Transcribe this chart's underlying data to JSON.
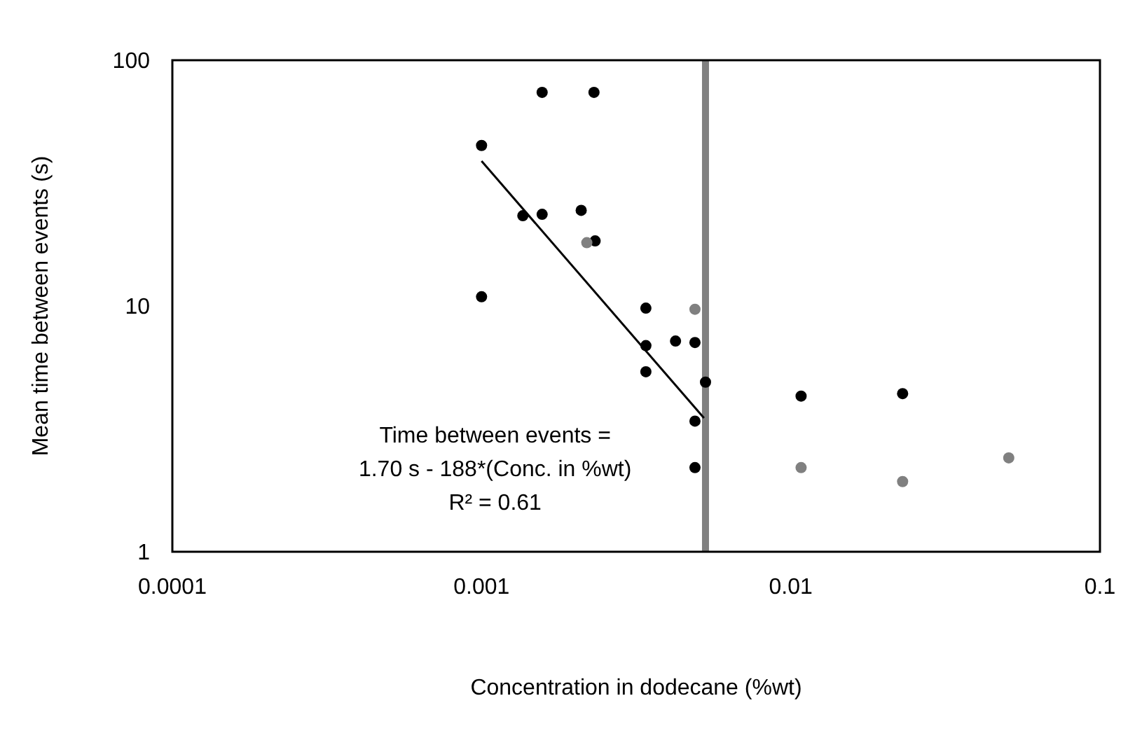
{
  "chart_data": {
    "type": "scatter",
    "xlabel": "Concentration in dodecane (%wt)",
    "ylabel": "Mean time between events (s)",
    "log": "xy",
    "xlim": [
      0.0001,
      0.1
    ],
    "ylim": [
      1,
      100
    ],
    "xticks": [
      0.0001,
      0.001,
      0.01,
      0.1
    ],
    "yticks": [
      1,
      10,
      100
    ],
    "grid": false,
    "marker": "circle",
    "series": [
      {
        "color": "#000000",
        "x": [
          0.001,
          0.00157,
          0.00231,
          0.00136,
          0.00157,
          0.0021,
          0.00233,
          0.001,
          0.0034,
          0.0034,
          0.0034,
          0.00424,
          0.0049,
          0.0053,
          0.0049,
          0.0049,
          0.0108,
          0.023
        ],
        "values": [
          45,
          74,
          74,
          23.3,
          23.6,
          24.5,
          18.4,
          10.9,
          9.8,
          6.9,
          5.4,
          7.2,
          7.1,
          4.9,
          3.4,
          2.2,
          4.3,
          4.4
        ]
      },
      {
        "color": "#808080",
        "x": [
          0.00219,
          0.0049,
          0.0108,
          0.023,
          0.0507
        ],
        "values": [
          18.1,
          9.7,
          2.2,
          1.93,
          2.41
        ]
      },
      {
        "type": "line",
        "color": "#000000",
        "marker": "none",
        "x": [
          0.001,
          0.00524
        ],
        "values": [
          38.9,
          3.5
        ]
      }
    ],
    "ref_lines": [
      {
        "axis": "x",
        "value": 0.0053,
        "color": "#808080"
      }
    ],
    "annotations": [
      "Time between events  =",
      "1.70 s - 188*(Conc. in %wt)",
      "R² = 0.61"
    ]
  }
}
